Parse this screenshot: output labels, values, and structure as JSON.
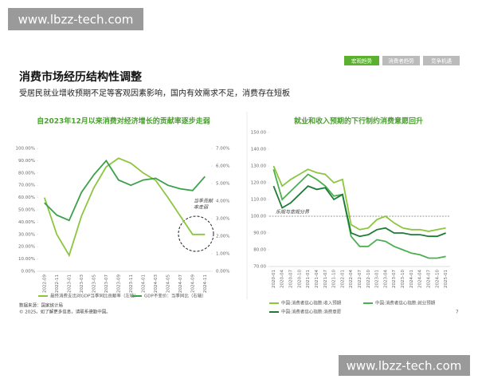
{
  "watermark": "www.lbzz-tech.com",
  "tabs": [
    "宏观趋势",
    "消费者趋势",
    "竞争机遇"
  ],
  "header": {
    "title": "消费市场经历结构性调整",
    "subtitle": "受居民就业增收预期不足等客观因素影响，国内有效需求不足，消费存在短板"
  },
  "footer": {
    "source": "数据来源：国家统计局",
    "copyright": "© 2025。如了解更多信息，请联系德勤中国。",
    "page": "7"
  },
  "chart_data": [
    {
      "type": "line",
      "title": "自2023年12月以来消费对经济增长的贡献率逐步走弱",
      "categories": [
        "2022-09",
        "2022-11",
        "2023-01",
        "2023-03",
        "2023-05",
        "2023-07",
        "2023-09",
        "2023-11",
        "2024-01",
        "2024-03",
        "2024-05",
        "2024-07",
        "2024-09",
        "2024-11"
      ],
      "series": [
        {
          "name": "最终消费支出对GDP当季同比贡献率（左轴）",
          "color": "#8cc63f",
          "values": [
            60,
            30,
            13,
            45,
            68,
            85,
            92,
            88,
            80,
            74,
            60,
            45,
            30,
            30
          ]
        },
        {
          "name": "GDP不变价：当季同比（右轴）",
          "color": "#3aa04a",
          "axis": "y2",
          "values": [
            3.9,
            3.2,
            2.9,
            4.5,
            5.5,
            6.3,
            5.2,
            4.9,
            5.2,
            5.3,
            4.9,
            4.7,
            4.6,
            5.4
          ]
        }
      ],
      "ylim": [
        0,
        100
      ],
      "yticks": [
        {
          "value": 0,
          "label": "0.00%"
        },
        {
          "value": 10,
          "label": "10.00%"
        },
        {
          "value": 20,
          "label": "20.00%"
        },
        {
          "value": 30,
          "label": "30.00%"
        },
        {
          "value": 40,
          "label": "40.00%"
        },
        {
          "value": 50,
          "label": "50.00%"
        },
        {
          "value": 60,
          "label": "60.00%"
        },
        {
          "value": 70,
          "label": "70.00%"
        },
        {
          "value": 80,
          "label": "80.00%"
        },
        {
          "value": 90,
          "label": "90.00%"
        },
        {
          "value": 100,
          "label": "100.00%"
        }
      ],
      "y2lim": [
        0,
        7
      ],
      "y2ticks": [
        {
          "value": 0,
          "label": "0.00%"
        },
        {
          "value": 1,
          "label": "1.00%"
        },
        {
          "value": 2,
          "label": "2.00%"
        },
        {
          "value": 3,
          "label": "3.00%"
        },
        {
          "value": 4,
          "label": "4.00%"
        },
        {
          "value": 5,
          "label": "5.00%"
        },
        {
          "value": 6,
          "label": "6.00%"
        },
        {
          "value": 7,
          "label": "7.00%"
        }
      ],
      "annotations": [
        "当季贡献",
        "率走弱"
      ]
    },
    {
      "type": "line",
      "title": "就业和收入预期的下行制约消费意愿回升",
      "categories": [
        "2020-01",
        "2020-04",
        "2020-07",
        "2020-10",
        "2021-01",
        "2021-04",
        "2021-07",
        "2021-10",
        "2022-01",
        "2022-04",
        "2022-07",
        "2022-10",
        "2023-01",
        "2023-04",
        "2023-07",
        "2023-10",
        "2024-01",
        "2024-04",
        "2024-07",
        "2024-10",
        "2025-01"
      ],
      "series": [
        {
          "name": "中国:消费者信心指数:收入预期",
          "color": "#8cc63f",
          "values": [
            130,
            118,
            122,
            125,
            128,
            126,
            125,
            120,
            122,
            95,
            92,
            93,
            98,
            100,
            96,
            93,
            92,
            92,
            91,
            92,
            93
          ]
        },
        {
          "name": "中国:消费者信心指数:就业预期",
          "color": "#4caf50",
          "values": [
            128,
            110,
            115,
            120,
            125,
            122,
            118,
            112,
            113,
            88,
            82,
            82,
            86,
            85,
            82,
            80,
            78,
            77,
            75,
            75,
            76
          ]
        },
        {
          "name": "中国:消费者信心指数:消费意愿",
          "color": "#1e7b34",
          "values": [
            118,
            105,
            108,
            113,
            118,
            116,
            117,
            110,
            113,
            90,
            88,
            89,
            92,
            93,
            90,
            90,
            89,
            89,
            88,
            88,
            90
          ]
        }
      ],
      "ylim": [
        70,
        150
      ],
      "yticks": [
        {
          "value": 70,
          "label": "70.00"
        },
        {
          "value": 80,
          "label": "80.00"
        },
        {
          "value": 90,
          "label": "90.00"
        },
        {
          "value": 100,
          "label": "100.00"
        },
        {
          "value": 110,
          "label": "110.00"
        },
        {
          "value": 120,
          "label": "120.00"
        },
        {
          "value": 130,
          "label": "130.00"
        },
        {
          "value": 140,
          "label": "140.00"
        },
        {
          "value": 150,
          "label": "150.00"
        }
      ],
      "reference_line": 100,
      "annotations": [
        "乐观与悲观分界"
      ]
    }
  ]
}
